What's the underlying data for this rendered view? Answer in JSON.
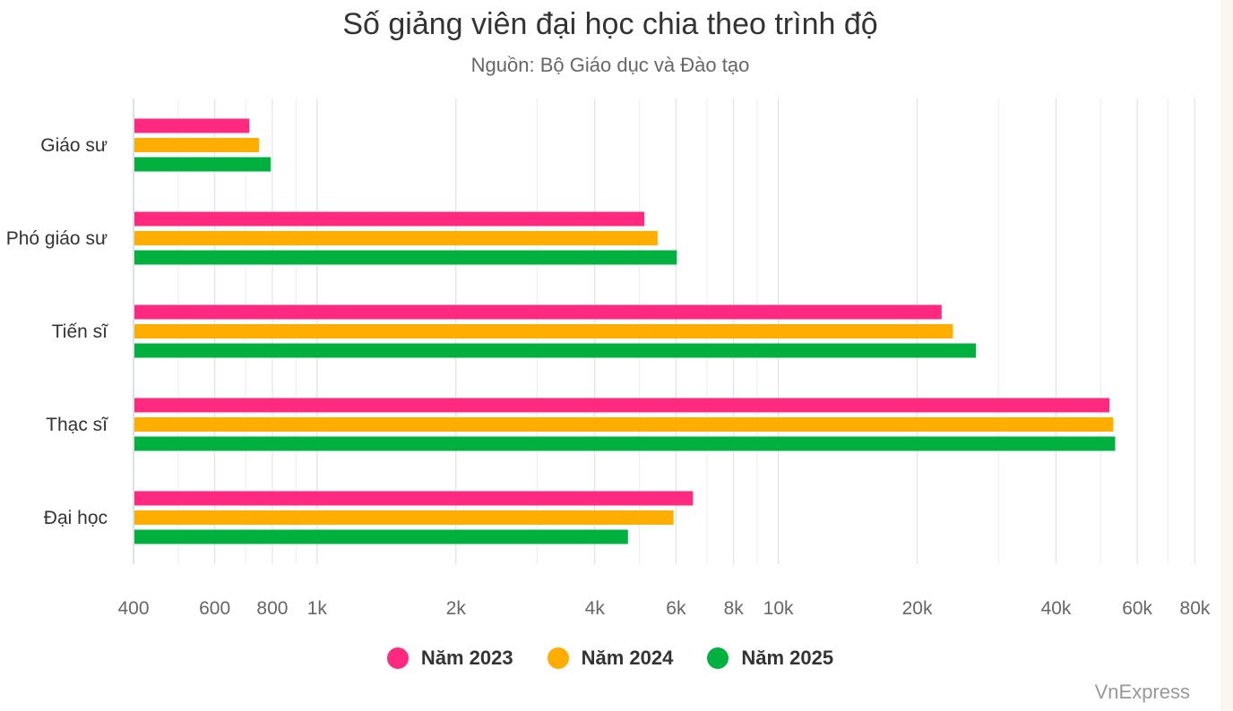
{
  "chart_data": {
    "type": "bar",
    "orientation": "horizontal",
    "title": "Số giảng viên đại học chia theo trình độ",
    "subtitle": "Nguồn: Bộ Giáo dục và Đào tạo",
    "x_scale": "log",
    "xlim": [
      400,
      85000
    ],
    "x_ticks": [
      400,
      600,
      800,
      1000,
      2000,
      4000,
      6000,
      8000,
      10000,
      20000,
      40000,
      60000,
      80000
    ],
    "x_tick_labels": [
      "400",
      "600",
      "800",
      "1k",
      "2k",
      "4k",
      "6k",
      "8k",
      "10k",
      "20k",
      "40k",
      "60k",
      "80k"
    ],
    "grid": true,
    "legend_position": "bottom-center",
    "categories": [
      "Giáo sư",
      "Phó giáo sư",
      "Tiến sĩ",
      "Thạc sĩ",
      "Đại học"
    ],
    "series": [
      {
        "name": "Năm 2023",
        "color": "#ff2a7f",
        "values": [
          710,
          5100,
          22500,
          52000,
          6500
        ]
      },
      {
        "name": "Năm 2024",
        "color": "#ffae00",
        "values": [
          745,
          5450,
          23800,
          53000,
          5900
        ]
      },
      {
        "name": "Năm 2025",
        "color": "#00b140",
        "values": [
          790,
          6000,
          26700,
          53500,
          4700
        ]
      }
    ]
  },
  "credit": "VnExpress"
}
